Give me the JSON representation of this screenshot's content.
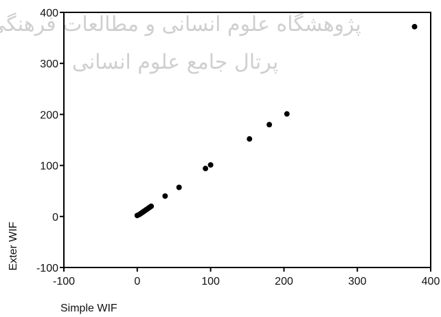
{
  "watermark": {
    "line1": "پژوهشگاه علوم انسانی و مطالعات فرهنگی",
    "line2": "پرتال جامع علوم انسانی"
  },
  "chart_data": {
    "type": "scatter",
    "xlabel": "Simple WIF",
    "ylabel": "Exter WIF",
    "xlim": [
      -100,
      400
    ],
    "ylim": [
      -100,
      400
    ],
    "xticks": [
      -100,
      0,
      100,
      200,
      300,
      400
    ],
    "yticks": [
      -100,
      0,
      100,
      200,
      300,
      400
    ],
    "grid": false,
    "points": [
      {
        "x": 0,
        "y": 2
      },
      {
        "x": 3,
        "y": 4
      },
      {
        "x": 5,
        "y": 6
      },
      {
        "x": 7,
        "y": 8
      },
      {
        "x": 9,
        "y": 10
      },
      {
        "x": 11,
        "y": 12
      },
      {
        "x": 13,
        "y": 14
      },
      {
        "x": 15,
        "y": 16
      },
      {
        "x": 17,
        "y": 18
      },
      {
        "x": 19,
        "y": 20
      },
      {
        "x": 38,
        "y": 40
      },
      {
        "x": 57,
        "y": 57
      },
      {
        "x": 93,
        "y": 94
      },
      {
        "x": 100,
        "y": 101
      },
      {
        "x": 153,
        "y": 152
      },
      {
        "x": 180,
        "y": 180
      },
      {
        "x": 204,
        "y": 201
      },
      {
        "x": 378,
        "y": 372
      }
    ],
    "marker_color": "#000000"
  }
}
